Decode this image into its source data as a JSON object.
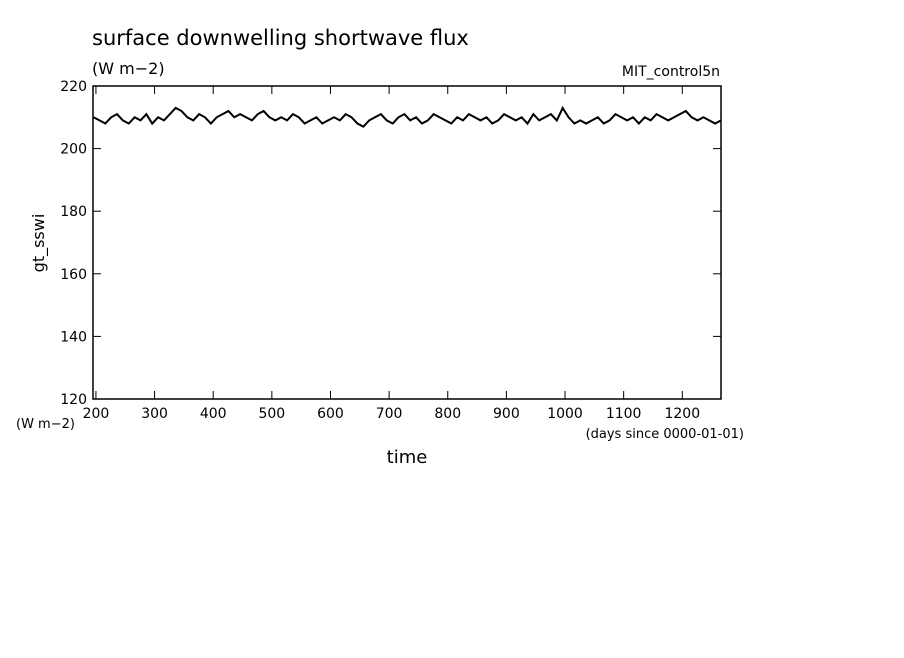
{
  "chart_data": {
    "type": "line",
    "title": "surface downwelling shortwave flux",
    "subtitle": "(W m−2)",
    "source": "MIT_control5n",
    "y_label": "gt_sswi",
    "y_units": "(W m−2)",
    "x_label": "time",
    "x_units": "(days since 0000-01-01)",
    "xlim": [
      195,
      1266
    ],
    "ylim": [
      120,
      220
    ],
    "xticks": [
      200,
      300,
      400,
      500,
      600,
      700,
      800,
      900,
      1000,
      1100,
      1200
    ],
    "yticks": [
      120,
      140,
      160,
      180,
      200,
      220
    ],
    "x": [
      196,
      206,
      216,
      226,
      236,
      246,
      256,
      266,
      276,
      286,
      296,
      306,
      316,
      326,
      336,
      346,
      356,
      366,
      376,
      386,
      396,
      406,
      416,
      426,
      436,
      446,
      456,
      466,
      476,
      486,
      496,
      506,
      516,
      526,
      536,
      546,
      556,
      566,
      576,
      586,
      596,
      606,
      616,
      626,
      636,
      646,
      656,
      666,
      676,
      686,
      696,
      706,
      716,
      726,
      736,
      746,
      756,
      766,
      776,
      786,
      796,
      806,
      816,
      826,
      836,
      846,
      856,
      866,
      876,
      886,
      896,
      906,
      916,
      926,
      936,
      946,
      956,
      966,
      976,
      986,
      996,
      1006,
      1016,
      1026,
      1036,
      1046,
      1056,
      1066,
      1076,
      1086,
      1096,
      1106,
      1116,
      1126,
      1136,
      1146,
      1156,
      1166,
      1176,
      1186,
      1196,
      1206,
      1216,
      1226,
      1236,
      1246,
      1256,
      1266
    ],
    "series": [
      {
        "color": "#000000",
        "values": [
          210,
          209,
          208,
          210,
          211,
          209,
          208,
          210,
          209,
          211,
          208,
          210,
          209,
          211,
          213,
          212,
          210,
          209,
          211,
          210,
          208,
          210,
          211,
          212,
          210,
          211,
          210,
          209,
          211,
          212,
          210,
          209,
          210,
          209,
          211,
          210,
          208,
          209,
          210,
          208,
          209,
          210,
          209,
          211,
          210,
          208,
          207,
          209,
          210,
          211,
          209,
          208,
          210,
          211,
          209,
          210,
          208,
          209,
          211,
          210,
          209,
          208,
          210,
          209,
          211,
          210,
          209,
          210,
          208,
          209,
          211,
          210,
          209,
          210,
          208,
          211,
          209,
          210,
          211,
          209,
          213,
          210,
          208,
          209,
          208,
          209,
          210,
          208,
          209,
          211,
          210,
          209,
          210,
          208,
          210,
          209,
          211,
          210,
          209,
          210,
          211,
          212,
          210,
          209,
          210,
          209,
          208,
          209
        ]
      }
    ]
  }
}
